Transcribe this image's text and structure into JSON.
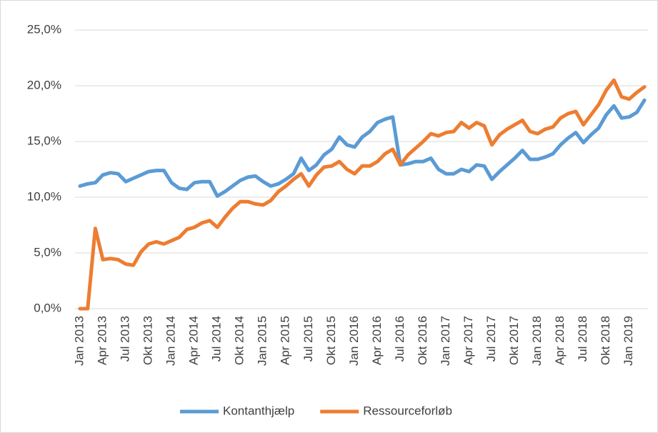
{
  "chart_data": {
    "type": "line",
    "categories": [
      "Jan 2013",
      null,
      null,
      "Apr 2013",
      null,
      null,
      "Jul 2013",
      null,
      null,
      "Okt 2013",
      null,
      null,
      "Jan 2014",
      null,
      null,
      "Apr 2014",
      null,
      null,
      "Jul 2014",
      null,
      null,
      "Okt 2014",
      null,
      null,
      "Jan 2015",
      null,
      null,
      "Apr 2015",
      null,
      null,
      "Jul 2015",
      null,
      null,
      "Okt 2015",
      null,
      null,
      "Jan 2016",
      null,
      null,
      "Apr 2016",
      null,
      null,
      "Jul 2016",
      null,
      null,
      "Okt 2016",
      null,
      null,
      "Jan 2017",
      null,
      null,
      "Apr 2017",
      null,
      null,
      "Jul 2017",
      null,
      null,
      "Okt 2017",
      null,
      null,
      "Jan 2018",
      null,
      null,
      "Apr 2018",
      null,
      null,
      "Jul 2018",
      null,
      null,
      "Okt 2018",
      null,
      null,
      "Jan 2019",
      null,
      null
    ],
    "series": [
      {
        "name": "Kontanthjælp",
        "color": "#5b9bd5",
        "values": [
          11.0,
          11.2,
          11.3,
          12.0,
          12.2,
          12.1,
          11.4,
          11.7,
          12.0,
          12.3,
          12.4,
          12.4,
          11.3,
          10.8,
          10.7,
          11.3,
          11.4,
          11.4,
          10.1,
          10.5,
          11.0,
          11.5,
          11.8,
          11.9,
          11.4,
          11.0,
          11.2,
          11.6,
          12.1,
          13.5,
          12.4,
          12.9,
          13.8,
          14.3,
          15.4,
          14.7,
          14.5,
          15.4,
          15.9,
          16.7,
          17.0,
          17.2,
          12.9,
          13.0,
          13.2,
          13.2,
          13.5,
          12.5,
          12.1,
          12.1,
          12.5,
          12.3,
          12.9,
          12.8,
          11.6,
          12.3,
          12.9,
          13.5,
          14.2,
          13.4,
          13.4,
          13.6,
          13.9,
          14.7,
          15.3,
          15.8,
          14.9,
          15.6,
          16.2,
          17.4,
          18.2,
          17.1,
          17.2,
          17.6,
          18.7
        ]
      },
      {
        "name": "Ressourceforløb",
        "color": "#ed7d31",
        "values": [
          0.0,
          0.0,
          7.2,
          4.4,
          4.5,
          4.4,
          4.0,
          3.9,
          5.1,
          5.8,
          6.0,
          5.8,
          6.1,
          6.4,
          7.1,
          7.3,
          7.7,
          7.9,
          7.3,
          8.2,
          9.0,
          9.6,
          9.6,
          9.4,
          9.3,
          9.7,
          10.5,
          11.0,
          11.6,
          12.1,
          11.0,
          12.0,
          12.7,
          12.8,
          13.2,
          12.5,
          12.1,
          12.8,
          12.8,
          13.2,
          13.9,
          14.3,
          12.9,
          13.8,
          14.4,
          15.0,
          15.7,
          15.5,
          15.8,
          15.9,
          16.7,
          16.2,
          16.7,
          16.4,
          14.7,
          15.6,
          16.1,
          16.5,
          16.9,
          15.9,
          15.7,
          16.1,
          16.3,
          17.1,
          17.5,
          17.7,
          16.5,
          17.4,
          18.3,
          19.6,
          20.5,
          19.0,
          18.8,
          19.4,
          19.9
        ]
      }
    ],
    "ylim": [
      0,
      25
    ],
    "yticks": [
      {
        "value": 0,
        "label": "0,0%"
      },
      {
        "value": 5,
        "label": "5,0%"
      },
      {
        "value": 10,
        "label": "10,0%"
      },
      {
        "value": 15,
        "label": "15,0%"
      },
      {
        "value": 20,
        "label": "20,0%"
      },
      {
        "value": 25,
        "label": "25,0%"
      }
    ],
    "grid": true,
    "legend": "bottom"
  }
}
